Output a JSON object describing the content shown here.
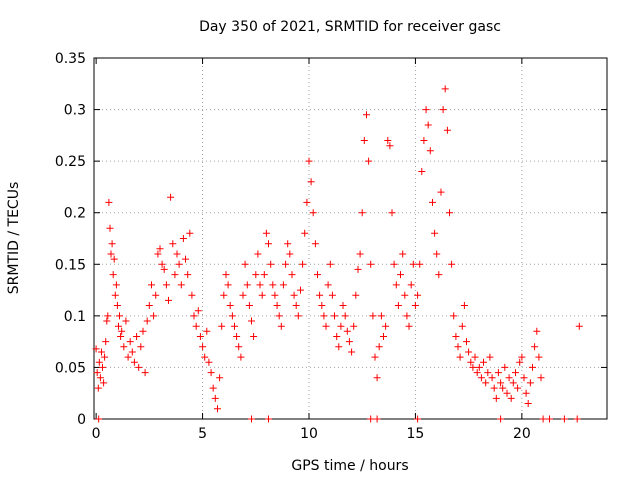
{
  "chart_data": {
    "type": "scatter",
    "title": "Day 350 of 2021, SRMTID for receiver gasc",
    "xlabel": "GPS time / hours",
    "ylabel": "SRMTID / TECUs",
    "xlim": [
      -0.1,
      24
    ],
    "ylim": [
      0,
      0.35
    ],
    "xticks": [
      0,
      5,
      10,
      15,
      20
    ],
    "xtick_labels": [
      "0",
      "5",
      "10",
      "15",
      "20"
    ],
    "yticks": [
      0,
      0.05,
      0.1,
      0.15,
      0.2,
      0.25,
      0.3,
      0.35
    ],
    "ytick_labels": [
      "0",
      "0.05",
      "0.1",
      "0.15",
      "0.2",
      "0.25",
      "0.3",
      "0.35"
    ],
    "grid": true,
    "marker": "plus",
    "color": "#ff0000",
    "series": [
      {
        "name": "SRMTID",
        "points": [
          [
            0.0,
            0.068
          ],
          [
            0.05,
            0.045
          ],
          [
            0.1,
            0.03
          ],
          [
            0.15,
            0.055
          ],
          [
            0.2,
            0.04
          ],
          [
            0.25,
            0.065
          ],
          [
            0.3,
            0.05
          ],
          [
            0.35,
            0.035
          ],
          [
            0.4,
            0.06
          ],
          [
            0.45,
            0.075
          ],
          [
            0.5,
            0.095
          ],
          [
            0.55,
            0.1
          ],
          [
            0.6,
            0.21
          ],
          [
            0.65,
            0.185
          ],
          [
            0.7,
            0.16
          ],
          [
            0.75,
            0.17
          ],
          [
            0.8,
            0.14
          ],
          [
            0.85,
            0.155
          ],
          [
            0.9,
            0.12
          ],
          [
            0.95,
            0.13
          ],
          [
            1.0,
            0.11
          ],
          [
            1.05,
            0.09
          ],
          [
            1.1,
            0.1
          ],
          [
            1.15,
            0.08
          ],
          [
            1.2,
            0.085
          ],
          [
            1.3,
            0.07
          ],
          [
            1.4,
            0.095
          ],
          [
            1.5,
            0.06
          ],
          [
            1.6,
            0.075
          ],
          [
            1.7,
            0.065
          ],
          [
            1.8,
            0.055
          ],
          [
            1.9,
            0.08
          ],
          [
            2.0,
            0.05
          ],
          [
            2.1,
            0.07
          ],
          [
            2.2,
            0.085
          ],
          [
            2.3,
            0.045
          ],
          [
            2.4,
            0.095
          ],
          [
            2.5,
            0.11
          ],
          [
            2.6,
            0.13
          ],
          [
            2.7,
            0.1
          ],
          [
            2.8,
            0.12
          ],
          [
            2.9,
            0.16
          ],
          [
            3.0,
            0.165
          ],
          [
            3.1,
            0.15
          ],
          [
            3.2,
            0.145
          ],
          [
            3.3,
            0.13
          ],
          [
            3.4,
            0.115
          ],
          [
            3.5,
            0.215
          ],
          [
            3.6,
            0.17
          ],
          [
            3.7,
            0.14
          ],
          [
            3.8,
            0.16
          ],
          [
            3.9,
            0.15
          ],
          [
            4.0,
            0.13
          ],
          [
            4.1,
            0.175
          ],
          [
            4.2,
            0.155
          ],
          [
            4.3,
            0.14
          ],
          [
            4.4,
            0.18
          ],
          [
            4.5,
            0.12
          ],
          [
            4.6,
            0.1
          ],
          [
            4.7,
            0.09
          ],
          [
            4.8,
            0.105
          ],
          [
            4.9,
            0.08
          ],
          [
            5.0,
            0.07
          ],
          [
            5.1,
            0.06
          ],
          [
            5.2,
            0.085
          ],
          [
            5.3,
            0.055
          ],
          [
            5.4,
            0.045
          ],
          [
            5.5,
            0.03
          ],
          [
            5.6,
            0.02
          ],
          [
            5.7,
            0.01
          ],
          [
            5.8,
            0.04
          ],
          [
            5.9,
            0.09
          ],
          [
            6.0,
            0.12
          ],
          [
            6.1,
            0.14
          ],
          [
            6.2,
            0.13
          ],
          [
            6.3,
            0.11
          ],
          [
            6.4,
            0.1
          ],
          [
            6.5,
            0.09
          ],
          [
            6.6,
            0.08
          ],
          [
            6.7,
            0.07
          ],
          [
            6.8,
            0.06
          ],
          [
            6.9,
            0.12
          ],
          [
            7.0,
            0.15
          ],
          [
            7.1,
            0.13
          ],
          [
            7.2,
            0.11
          ],
          [
            7.3,
            0.095
          ],
          [
            7.4,
            0.08
          ],
          [
            7.5,
            0.14
          ],
          [
            7.6,
            0.16
          ],
          [
            7.7,
            0.13
          ],
          [
            7.8,
            0.12
          ],
          [
            7.9,
            0.14
          ],
          [
            8.0,
            0.18
          ],
          [
            8.1,
            0.17
          ],
          [
            8.2,
            0.15
          ],
          [
            8.3,
            0.13
          ],
          [
            8.4,
            0.12
          ],
          [
            8.5,
            0.11
          ],
          [
            8.6,
            0.1
          ],
          [
            8.7,
            0.09
          ],
          [
            8.8,
            0.13
          ],
          [
            8.9,
            0.15
          ],
          [
            9.0,
            0.17
          ],
          [
            9.1,
            0.16
          ],
          [
            9.2,
            0.14
          ],
          [
            9.3,
            0.12
          ],
          [
            9.4,
            0.11
          ],
          [
            9.5,
            0.1
          ],
          [
            9.6,
            0.125
          ],
          [
            9.7,
            0.15
          ],
          [
            9.8,
            0.18
          ],
          [
            9.9,
            0.21
          ],
          [
            10.0,
            0.25
          ],
          [
            10.1,
            0.23
          ],
          [
            10.2,
            0.2
          ],
          [
            10.3,
            0.17
          ],
          [
            10.4,
            0.14
          ],
          [
            10.5,
            0.12
          ],
          [
            10.6,
            0.11
          ],
          [
            10.7,
            0.1
          ],
          [
            10.8,
            0.09
          ],
          [
            10.9,
            0.13
          ],
          [
            11.0,
            0.15
          ],
          [
            11.1,
            0.12
          ],
          [
            11.2,
            0.1
          ],
          [
            11.3,
            0.08
          ],
          [
            11.4,
            0.07
          ],
          [
            11.5,
            0.09
          ],
          [
            11.6,
            0.11
          ],
          [
            11.7,
            0.1
          ],
          [
            11.8,
            0.085
          ],
          [
            11.9,
            0.075
          ],
          [
            12.0,
            0.065
          ],
          [
            12.1,
            0.09
          ],
          [
            12.2,
            0.12
          ],
          [
            12.3,
            0.145
          ],
          [
            12.4,
            0.16
          ],
          [
            12.5,
            0.2
          ],
          [
            12.6,
            0.27
          ],
          [
            12.7,
            0.295
          ],
          [
            12.8,
            0.25
          ],
          [
            12.9,
            0.15
          ],
          [
            13.0,
            0.1
          ],
          [
            13.1,
            0.06
          ],
          [
            13.2,
            0.04
          ],
          [
            13.3,
            0.07
          ],
          [
            13.4,
            0.1
          ],
          [
            13.5,
            0.08
          ],
          [
            13.6,
            0.09
          ],
          [
            13.7,
            0.27
          ],
          [
            13.8,
            0.265
          ],
          [
            13.9,
            0.2
          ],
          [
            14.0,
            0.15
          ],
          [
            14.1,
            0.13
          ],
          [
            14.2,
            0.11
          ],
          [
            14.3,
            0.14
          ],
          [
            14.4,
            0.16
          ],
          [
            14.5,
            0.12
          ],
          [
            14.6,
            0.1
          ],
          [
            14.7,
            0.09
          ],
          [
            14.8,
            0.13
          ],
          [
            14.9,
            0.15
          ],
          [
            15.0,
            0.11
          ],
          [
            15.1,
            0.12
          ],
          [
            15.2,
            0.15
          ],
          [
            15.3,
            0.24
          ],
          [
            15.4,
            0.27
          ],
          [
            15.5,
            0.3
          ],
          [
            15.6,
            0.285
          ],
          [
            15.7,
            0.26
          ],
          [
            15.8,
            0.21
          ],
          [
            15.9,
            0.18
          ],
          [
            16.0,
            0.16
          ],
          [
            16.1,
            0.14
          ],
          [
            16.2,
            0.22
          ],
          [
            16.3,
            0.3
          ],
          [
            16.4,
            0.32
          ],
          [
            16.5,
            0.28
          ],
          [
            16.6,
            0.2
          ],
          [
            16.7,
            0.15
          ],
          [
            16.8,
            0.1
          ],
          [
            16.9,
            0.08
          ],
          [
            17.0,
            0.07
          ],
          [
            17.1,
            0.06
          ],
          [
            17.2,
            0.09
          ],
          [
            17.3,
            0.11
          ],
          [
            17.4,
            0.075
          ],
          [
            17.5,
            0.065
          ],
          [
            17.6,
            0.055
          ],
          [
            17.7,
            0.05
          ],
          [
            17.8,
            0.06
          ],
          [
            17.9,
            0.045
          ],
          [
            18.0,
            0.05
          ],
          [
            18.1,
            0.04
          ],
          [
            18.2,
            0.055
          ],
          [
            18.3,
            0.035
          ],
          [
            18.4,
            0.045
          ],
          [
            18.5,
            0.06
          ],
          [
            18.6,
            0.04
          ],
          [
            18.7,
            0.03
          ],
          [
            18.8,
            0.02
          ],
          [
            18.9,
            0.045
          ],
          [
            19.0,
            0.035
          ],
          [
            19.1,
            0.03
          ],
          [
            19.2,
            0.05
          ],
          [
            19.3,
            0.025
          ],
          [
            19.4,
            0.04
          ],
          [
            19.5,
            0.02
          ],
          [
            19.6,
            0.035
          ],
          [
            19.7,
            0.045
          ],
          [
            19.8,
            0.03
          ],
          [
            19.9,
            0.055
          ],
          [
            20.0,
            0.06
          ],
          [
            20.1,
            0.04
          ],
          [
            20.2,
            0.025
          ],
          [
            20.3,
            0.015
          ],
          [
            20.4,
            0.035
          ],
          [
            20.5,
            0.05
          ],
          [
            20.6,
            0.07
          ],
          [
            20.7,
            0.085
          ],
          [
            20.8,
            0.06
          ],
          [
            20.9,
            0.04
          ],
          [
            22.7,
            0.09
          ],
          [
            0.12,
            0.0
          ],
          [
            7.3,
            0.0
          ],
          [
            8.1,
            0.0
          ],
          [
            12.9,
            0.0
          ],
          [
            13.2,
            0.0
          ],
          [
            15.1,
            0.0
          ],
          [
            19.0,
            0.0
          ],
          [
            21.0,
            0.0
          ],
          [
            21.3,
            0.0
          ],
          [
            22.0,
            0.0
          ],
          [
            22.6,
            0.0
          ]
        ]
      }
    ]
  }
}
